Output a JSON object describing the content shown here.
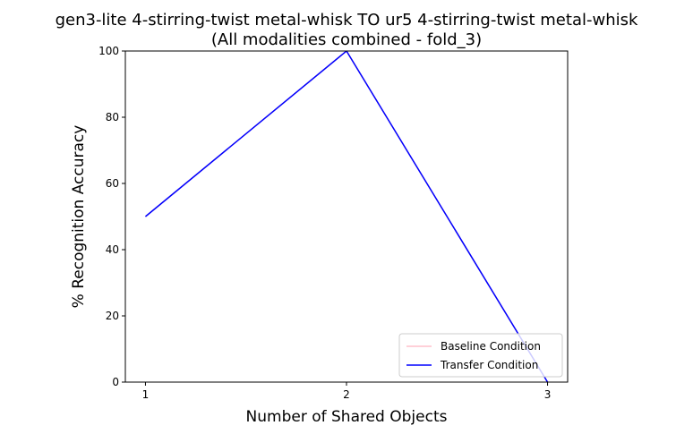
{
  "chart_data": {
    "type": "line",
    "title": [
      "gen3-lite 4-stirring-twist metal-whisk TO ur5 4-stirring-twist metal-whisk",
      "(All modalities combined - fold_3)"
    ],
    "xlabel": "Number of Shared Objects",
    "ylabel": "% Recognition Accuracy",
    "x": [
      1,
      2,
      3
    ],
    "series": [
      {
        "name": "Baseline Condition",
        "color": "pink",
        "values": [
          50,
          100,
          0
        ]
      },
      {
        "name": "Transfer Condition",
        "color": "blue",
        "values": [
          50,
          100,
          0
        ]
      }
    ],
    "xlim": [
      0.9,
      3.1
    ],
    "xticks": [
      1,
      2,
      3
    ],
    "ylim": [
      0,
      100
    ],
    "yticks": [
      0,
      20,
      40,
      60,
      80,
      100
    ],
    "legend": "lower right"
  }
}
